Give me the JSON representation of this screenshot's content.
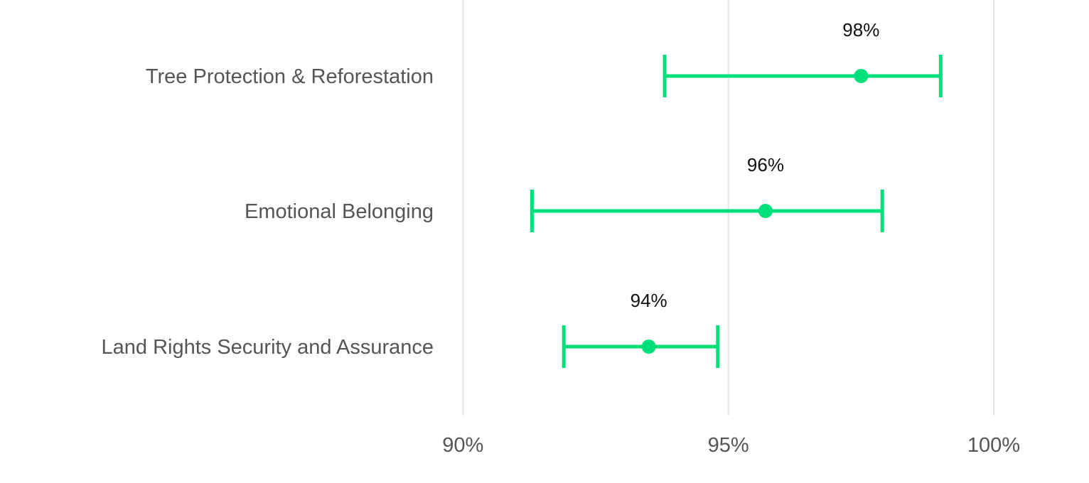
{
  "chart_data": {
    "type": "errorbar",
    "title": "",
    "xlabel": "",
    "ylabel": "",
    "xlim": [
      86.5,
      101.5
    ],
    "x_ticks": [
      90,
      95,
      100
    ],
    "x_tick_labels": [
      "90%",
      "95%",
      "100%"
    ],
    "grid": true,
    "accent_color": "#00e07a",
    "categories": [
      "Tree Protection & Reforestation",
      "Emotional Belonging",
      "Land Rights Security and Assurance"
    ],
    "values": [
      97.5,
      95.7,
      93.5
    ],
    "lower": [
      93.8,
      91.3,
      91.9
    ],
    "upper": [
      99.0,
      97.9,
      94.8
    ],
    "value_labels": [
      "98%",
      "96%",
      "94%"
    ]
  }
}
